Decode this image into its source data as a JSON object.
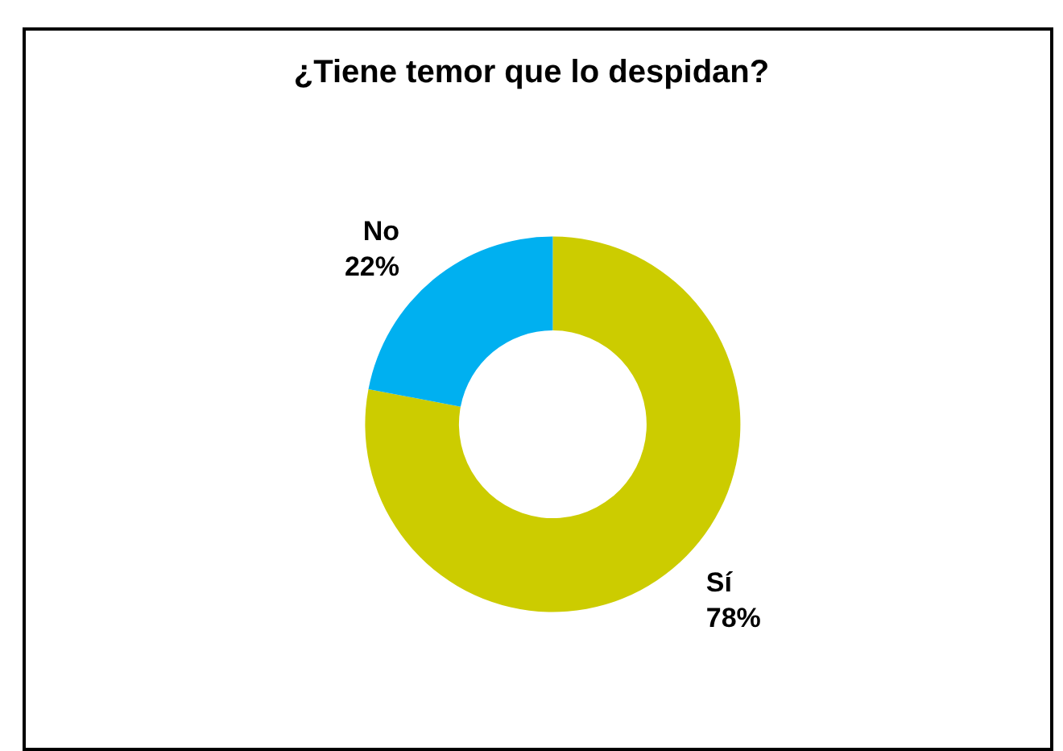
{
  "chart_data": {
    "type": "donut",
    "title": "¿Tiene temor que lo despidan?",
    "categories": [
      "Sí",
      "No"
    ],
    "values": [
      78,
      22
    ],
    "colors": [
      "#cccc00",
      "#00b0f0"
    ],
    "value_labels": [
      "78%",
      "22%"
    ],
    "legend": false
  }
}
